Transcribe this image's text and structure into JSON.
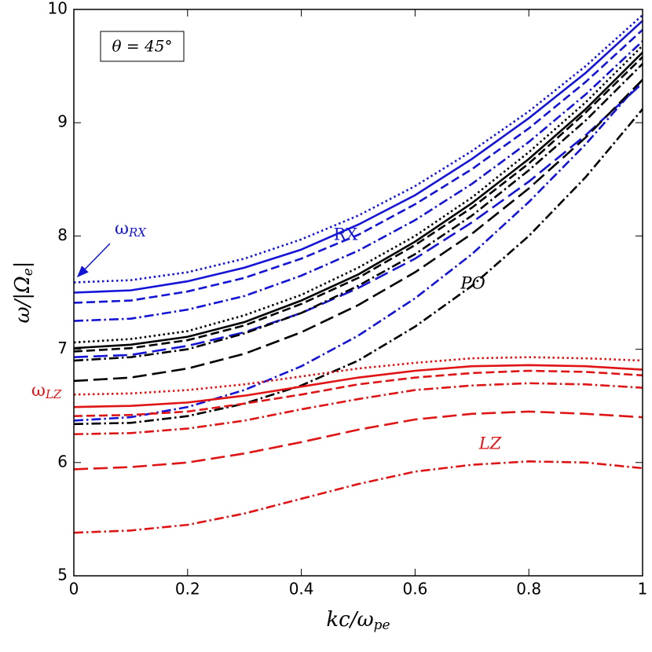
{
  "chart_data": {
    "type": "line",
    "xlabel": [
      "kc/ω",
      "pe"
    ],
    "ylabel": [
      "ω/|Ω",
      "e",
      "|"
    ],
    "annotations": [
      "θ = 45°",
      "RX",
      "PO",
      "LZ",
      [
        "ω",
        "RX"
      ],
      [
        "ω",
        "LZ"
      ]
    ],
    "x": [
      0,
      0.1,
      0.2,
      0.3,
      0.4,
      0.5,
      0.6,
      0.7,
      0.8,
      0.9,
      1
    ],
    "xlim": [
      0,
      1
    ],
    "xticks": [
      0,
      0.2,
      0.4,
      0.6,
      0.8,
      1
    ],
    "ylim": [
      5,
      10
    ],
    "yticks": [
      5,
      6,
      7,
      8,
      9,
      10
    ],
    "series": [
      {
        "color": "#1414d8",
        "dash": "dotted",
        "values": [
          7.59,
          7.61,
          7.68,
          7.8,
          7.97,
          8.18,
          8.44,
          8.75,
          9.1,
          9.5,
          9.95
        ]
      },
      {
        "color": "#1414d8",
        "dash": "solid",
        "values": [
          7.5,
          7.52,
          7.6,
          7.72,
          7.88,
          8.1,
          8.36,
          8.68,
          9.04,
          9.44,
          9.9
        ]
      },
      {
        "color": "#1414d8",
        "dash": "dashed",
        "values": [
          7.41,
          7.43,
          7.51,
          7.63,
          7.8,
          8.01,
          8.28,
          8.59,
          8.95,
          9.36,
          9.82
        ]
      },
      {
        "color": "#1414d8",
        "dash": "dashdot",
        "values": [
          7.25,
          7.27,
          7.35,
          7.47,
          7.65,
          7.87,
          8.14,
          8.46,
          8.83,
          9.25,
          9.72
        ]
      },
      {
        "color": "#1414d8",
        "dash": "longdash",
        "values": [
          6.93,
          6.95,
          7.03,
          7.15,
          7.32,
          7.54,
          7.8,
          8.12,
          8.48,
          8.89,
          9.35
        ]
      },
      {
        "color": "#1414d8",
        "dash": "dashdot",
        "values": [
          6.37,
          6.4,
          6.49,
          6.64,
          6.85,
          7.12,
          7.45,
          7.84,
          8.3,
          8.81,
          9.38
        ]
      },
      {
        "color": "#000000",
        "dash": "dotted",
        "values": [
          7.06,
          7.09,
          7.16,
          7.3,
          7.48,
          7.72,
          8.0,
          8.34,
          8.74,
          9.18,
          9.68
        ]
      },
      {
        "color": "#000000",
        "dash": "solid",
        "values": [
          7.01,
          7.04,
          7.11,
          7.24,
          7.43,
          7.66,
          7.95,
          8.29,
          8.68,
          9.12,
          9.62
        ]
      },
      {
        "color": "#000000",
        "dash": "dashed",
        "values": [
          6.98,
          7.01,
          7.08,
          7.21,
          7.4,
          7.63,
          7.92,
          8.25,
          8.64,
          9.09,
          9.58
        ]
      },
      {
        "color": "#000000",
        "dash": "dashdot",
        "values": [
          6.9,
          6.93,
          7.0,
          7.14,
          7.32,
          7.56,
          7.84,
          8.18,
          8.58,
          9.02,
          9.52
        ]
      },
      {
        "color": "#000000",
        "dash": "longdash",
        "values": [
          6.72,
          6.75,
          6.83,
          6.96,
          7.15,
          7.39,
          7.68,
          8.02,
          8.42,
          8.87,
          9.38
        ]
      },
      {
        "color": "#000000",
        "dash": "dashdot",
        "values": [
          6.34,
          6.35,
          6.41,
          6.52,
          6.68,
          6.9,
          7.2,
          7.56,
          8.0,
          8.52,
          9.12
        ]
      },
      {
        "color": "#e01414",
        "dash": "dotted",
        "values": [
          6.6,
          6.61,
          6.64,
          6.69,
          6.76,
          6.83,
          6.88,
          6.92,
          6.93,
          6.92,
          6.9
        ]
      },
      {
        "color": "#e01414",
        "dash": "solid",
        "values": [
          6.49,
          6.5,
          6.53,
          6.59,
          6.67,
          6.75,
          6.81,
          6.85,
          6.86,
          6.85,
          6.82
        ]
      },
      {
        "color": "#e01414",
        "dash": "dashed",
        "values": [
          6.41,
          6.42,
          6.45,
          6.52,
          6.6,
          6.69,
          6.75,
          6.79,
          6.81,
          6.8,
          6.77
        ]
      },
      {
        "color": "#e01414",
        "dash": "dashdot",
        "values": [
          6.25,
          6.26,
          6.3,
          6.37,
          6.47,
          6.56,
          6.64,
          6.68,
          6.7,
          6.69,
          6.66
        ]
      },
      {
        "color": "#e01414",
        "dash": "longdash",
        "values": [
          5.94,
          5.96,
          6.0,
          6.08,
          6.18,
          6.29,
          6.38,
          6.43,
          6.45,
          6.43,
          6.4
        ]
      },
      {
        "color": "#e01414",
        "dash": "dashdot",
        "values": [
          5.38,
          5.4,
          5.45,
          5.55,
          5.68,
          5.81,
          5.92,
          5.98,
          6.01,
          6.0,
          5.95
        ]
      }
    ]
  }
}
